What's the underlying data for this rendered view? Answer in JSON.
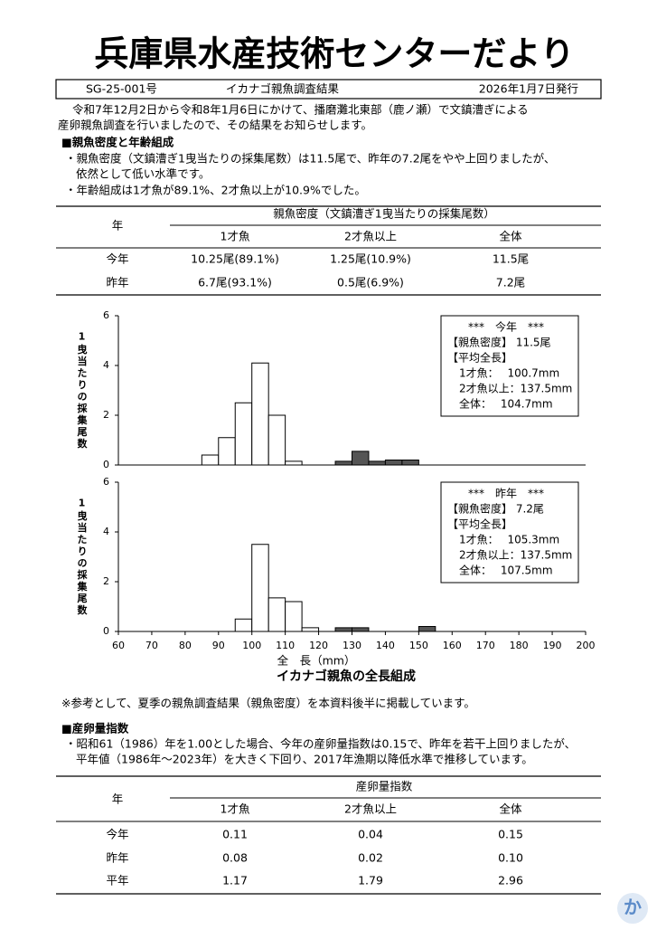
{
  "header": {
    "title": "兵庫県水産技術センターだより",
    "id": "SG-25-001号",
    "subject": "イカナゴ親魚調査結果",
    "date": "2026年1月7日発行"
  },
  "intro": [
    "令和7年12月2日から令和8年1月6日にかけて、播磨灘北東部（鹿ノ瀬）で文鎮漕ぎによる",
    "産卵親魚調査を行いましたので、その結果をお知らせします。"
  ],
  "section1": {
    "heading": "■親魚密度と年齢組成",
    "bullets": [
      "・親魚密度（文鎮漕ぎ1曳当たりの採集尾数）は11.5尾で、昨年の7.2尾をやや上回りましたが、",
      "依然として低い水準です。",
      "・年齢組成は1才魚が89.1%、2才魚以上が10.9%でした。"
    ]
  },
  "table1": {
    "year_header": "年",
    "group_header": "親魚密度（文鎮漕ぎ1曳当たりの採集尾数）",
    "columns": [
      "1才魚",
      "2才魚以上",
      "全体"
    ],
    "rows": [
      [
        "今年",
        "10.25尾(89.1%)",
        "1.25尾(10.9%)",
        "11.5尾"
      ],
      [
        "昨年",
        "6.7尾(93.1%)",
        "0.5尾(6.9%)",
        "7.2尾"
      ]
    ]
  },
  "chart_data": [
    {
      "type": "histogram",
      "ylabel": "1曳当たりの採集尾数",
      "bins": [
        60,
        65,
        70,
        75,
        80,
        85,
        90,
        95,
        100,
        105,
        110,
        115,
        120,
        125,
        130,
        135,
        140,
        145,
        150,
        155,
        160,
        165,
        170,
        175,
        180,
        185,
        190,
        195,
        200
      ],
      "series": [
        {
          "color": "#ffffff",
          "values": [
            0,
            0,
            0,
            0,
            0,
            0.4,
            1.1,
            2.5,
            4.1,
            2.0,
            0.15,
            0,
            0,
            0,
            0,
            0,
            0,
            0,
            0,
            0,
            0,
            0,
            0,
            0,
            0,
            0,
            0,
            0
          ]
        },
        {
          "color": "#555555",
          "values": [
            0,
            0,
            0,
            0,
            0,
            0,
            0,
            0,
            0,
            0,
            0,
            0,
            0,
            0.15,
            0.55,
            0.15,
            0.2,
            0.2,
            0,
            0,
            0,
            0,
            0,
            0,
            0,
            0,
            0,
            0
          ]
        }
      ],
      "xlim": [
        60,
        200
      ],
      "ylim": [
        0,
        6
      ],
      "yticks": [
        0,
        2,
        4,
        6
      ],
      "annotations": [
        "***　今年　***",
        "【親魚密度】 11.5尾",
        "【平均全長】",
        "1才魚：　 100.7mm",
        "2才魚以上：137.5mm",
        "全体：　 104.7mm"
      ]
    },
    {
      "type": "histogram",
      "ylabel": "1曳当たりの採集尾数",
      "bins": [
        60,
        65,
        70,
        75,
        80,
        85,
        90,
        95,
        100,
        105,
        110,
        115,
        120,
        125,
        130,
        135,
        140,
        145,
        150,
        155,
        160,
        165,
        170,
        175,
        180,
        185,
        190,
        195,
        200
      ],
      "series": [
        {
          "color": "#ffffff",
          "values": [
            0,
            0,
            0,
            0,
            0,
            0,
            0,
            0.5,
            3.5,
            1.35,
            1.2,
            0.15,
            0,
            0,
            0,
            0,
            0,
            0,
            0,
            0,
            0,
            0,
            0,
            0,
            0,
            0,
            0,
            0
          ]
        },
        {
          "color": "#555555",
          "values": [
            0,
            0,
            0,
            0,
            0,
            0,
            0,
            0,
            0,
            0,
            0,
            0,
            0,
            0.15,
            0.15,
            0,
            0,
            0,
            0.2,
            0,
            0,
            0,
            0,
            0,
            0,
            0,
            0,
            0
          ]
        }
      ],
      "xlim": [
        60,
        200
      ],
      "ylim": [
        0,
        6
      ],
      "yticks": [
        0,
        2,
        4,
        6
      ],
      "xticks": [
        60,
        70,
        80,
        90,
        100,
        110,
        120,
        130,
        140,
        150,
        160,
        170,
        180,
        190,
        200
      ],
      "xlabel": "全　長（mm）",
      "title": "イカナゴ親魚の全長組成",
      "annotations": [
        "***　昨年　***",
        "【親魚密度】 7.2尾",
        "【平均全長】",
        "1才魚：　 105.3mm",
        "2才魚以上：137.5mm",
        "全体：　 107.5mm"
      ]
    }
  ],
  "note": "※参考として、夏季の親魚調査結果（親魚密度）を本資料後半に掲載しています。",
  "section2": {
    "heading": "■産卵量指数",
    "bullets": [
      "・昭和61（1986）年を1.00とした場合、今年の産卵量指数は0.15で、昨年を若干上回りましたが、",
      "平年値（1986年～2023年）を大きく下回り、2017年漁期以降低水準で推移しています。"
    ]
  },
  "table2": {
    "year_header": "年",
    "group_header": "産卵量指数",
    "columns": [
      "1才魚",
      "2才魚以上",
      "全体"
    ],
    "rows": [
      [
        "今年",
        "0.11",
        "0.04",
        "0.15"
      ],
      [
        "昨年",
        "0.08",
        "0.02",
        "0.10"
      ],
      [
        "平年",
        "1.17",
        "1.79",
        "2.96"
      ]
    ]
  },
  "footer": {
    "mark": "か"
  }
}
